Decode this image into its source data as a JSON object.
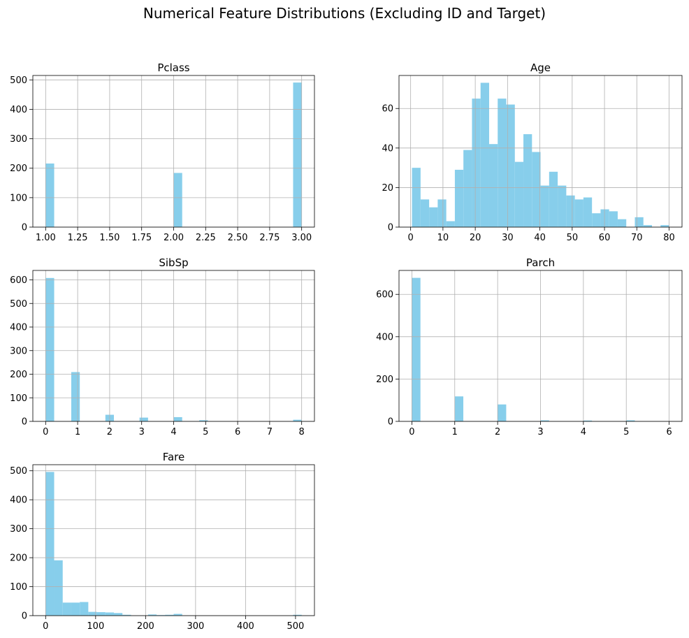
{
  "title": "Numerical Feature Distributions (Excluding ID and Target)",
  "colors": {
    "bar": "#87ceeb",
    "grid": "#b0b0b0",
    "axis": "#000000",
    "background": "#ffffff"
  },
  "chart_data": [
    {
      "type": "histogram",
      "title": "Pclass",
      "bins": 30,
      "xlim": [
        0.9,
        3.1
      ],
      "ylim": [
        0,
        515
      ],
      "xticks": [
        1.0,
        1.25,
        1.5,
        1.75,
        2.0,
        2.25,
        2.5,
        2.75,
        3.0
      ],
      "xtick_labels": [
        "1.00",
        "1.25",
        "1.50",
        "1.75",
        "2.00",
        "2.25",
        "2.50",
        "2.75",
        "3.00"
      ],
      "yticks": [
        0,
        100,
        200,
        300,
        400,
        500
      ],
      "grid": true,
      "bars": [
        {
          "x0": 1.0,
          "x1": 1.0667,
          "count": 216
        },
        {
          "x0": 2.0,
          "x1": 2.0667,
          "count": 184
        },
        {
          "x0": 2.9333,
          "x1": 3.0,
          "count": 491
        }
      ]
    },
    {
      "type": "histogram",
      "title": "Age",
      "bins": 30,
      "xlim": [
        -3.6,
        83.99
      ],
      "ylim": [
        0,
        76.7
      ],
      "xticks": [
        0,
        10,
        20,
        30,
        40,
        50,
        60,
        70,
        80
      ],
      "xtick_labels": [
        "0",
        "10",
        "20",
        "30",
        "40",
        "50",
        "60",
        "70",
        "80"
      ],
      "yticks": [
        0,
        20,
        40,
        60
      ],
      "grid": true,
      "bin_start": 0.42,
      "bin_width": 2.6527,
      "counts": [
        30,
        14,
        10,
        14,
        3,
        29,
        39,
        65,
        73,
        42,
        65,
        62,
        33,
        47,
        38,
        21,
        28,
        21,
        16,
        14,
        15,
        7,
        9,
        8,
        4,
        0,
        5,
        1,
        0,
        1
      ]
    },
    {
      "type": "histogram",
      "title": "SibSp",
      "bins": 30,
      "xlim": [
        -0.4,
        8.4
      ],
      "ylim": [
        0,
        640
      ],
      "xticks": [
        0,
        1,
        2,
        3,
        4,
        5,
        6,
        7,
        8
      ],
      "xtick_labels": [
        "0",
        "1",
        "2",
        "3",
        "4",
        "5",
        "6",
        "7",
        "8"
      ],
      "yticks": [
        0,
        100,
        200,
        300,
        400,
        500,
        600
      ],
      "grid": true,
      "bars": [
        {
          "x0": 0.0,
          "x1": 0.2667,
          "count": 608
        },
        {
          "x0": 0.8,
          "x1": 1.0667,
          "count": 209
        },
        {
          "x0": 1.8667,
          "x1": 2.1333,
          "count": 28
        },
        {
          "x0": 2.9333,
          "x1": 3.2,
          "count": 16
        },
        {
          "x0": 4.0,
          "x1": 4.2667,
          "count": 18
        },
        {
          "x0": 4.8,
          "x1": 5.0667,
          "count": 5
        },
        {
          "x0": 7.7333,
          "x1": 8.0,
          "count": 7
        }
      ]
    },
    {
      "type": "histogram",
      "title": "Parch",
      "bins": 30,
      "xlim": [
        -0.3,
        6.3
      ],
      "ylim": [
        0,
        713
      ],
      "xticks": [
        0,
        1,
        2,
        3,
        4,
        5,
        6
      ],
      "xtick_labels": [
        "0",
        "1",
        "2",
        "3",
        "4",
        "5",
        "6"
      ],
      "yticks": [
        0,
        200,
        400,
        600
      ],
      "grid": true,
      "bars": [
        {
          "x0": 0.0,
          "x1": 0.2,
          "count": 678
        },
        {
          "x0": 1.0,
          "x1": 1.2,
          "count": 118
        },
        {
          "x0": 2.0,
          "x1": 2.2,
          "count": 80
        },
        {
          "x0": 3.0,
          "x1": 3.2,
          "count": 5
        },
        {
          "x0": 4.0,
          "x1": 4.2,
          "count": 4
        },
        {
          "x0": 5.0,
          "x1": 5.2,
          "count": 5
        },
        {
          "x0": 5.8,
          "x1": 6.0,
          "count": 1
        }
      ]
    },
    {
      "type": "histogram",
      "title": "Fare",
      "bins": 30,
      "xlim": [
        -25.6,
        537.9
      ],
      "ylim": [
        0,
        521
      ],
      "xticks": [
        0,
        100,
        200,
        300,
        400,
        500
      ],
      "xtick_labels": [
        "0",
        "100",
        "200",
        "300",
        "400",
        "500"
      ],
      "yticks": [
        0,
        100,
        200,
        300,
        400,
        500
      ],
      "grid": true,
      "bin_start": 0,
      "bin_width": 17.0776,
      "counts": [
        496,
        191,
        45,
        45,
        47,
        13,
        12,
        11,
        9,
        3,
        0,
        0,
        4,
        2,
        3,
        6,
        0,
        0,
        0,
        0,
        0,
        0,
        0,
        0,
        0,
        0,
        0,
        0,
        0,
        3
      ]
    }
  ]
}
